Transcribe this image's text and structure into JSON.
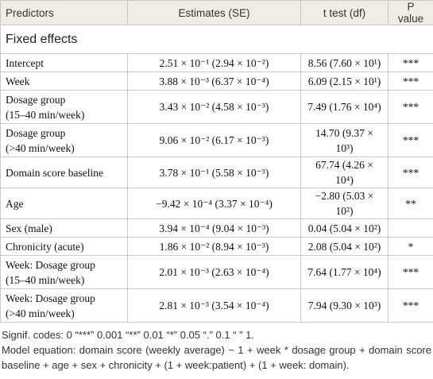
{
  "table": {
    "header": [
      "Predictors",
      "Estimates (SE)",
      "t test (df)",
      "P value"
    ],
    "section": "Fixed effects",
    "rows": [
      [
        "Intercept",
        "2.51 × 10⁻¹ (2.94 × 10⁻²)",
        "8.56 (7.60 × 10¹)",
        "***"
      ],
      [
        "Week",
        "3.88 × 10⁻³ (6.37 × 10⁻⁴)",
        "6.09 (2.15 × 10¹)",
        "***"
      ],
      [
        "Dosage group\n(15–40 min/week)",
        "3.43 × 10⁻² (4.58 × 10⁻³)",
        "7.49 (1.76 × 10⁴)",
        "***"
      ],
      [
        "Dosage group\n(>40 min/week)",
        "9.06 × 10⁻² (6.17 × 10⁻³)",
        "14.70 (9.37 × 10³)",
        "***"
      ],
      [
        "Domain score baseline",
        "3.78 × 10⁻¹ (5.58 × 10⁻³)",
        "67.74 (4.26 × 10⁴)",
        "***"
      ],
      [
        "Age",
        "−9.42 × 10⁻⁴ (3.37 × 10⁻⁴)",
        "−2.80 (5.03 × 10²)",
        "**"
      ],
      [
        "Sex (male)",
        "3.94 × 10⁻⁴ (9.04 × 10⁻³)",
        "0.04 (5.04 × 10²)",
        null
      ],
      [
        "Chronicity (acute)",
        "1.86 × 10⁻² (8.94 × 10⁻³)",
        "2.08 (5.04 × 10²)",
        "*"
      ],
      [
        "Week: Dosage group\n(15–40 min/week)",
        "2.01 × 10⁻³ (2.63 × 10⁻⁴)",
        "7.64 (1.77 × 10⁴)",
        "***"
      ],
      [
        "Week: Dosage group\n(>40 min/week)",
        "2.81 × 10⁻³ (3.54 × 10⁻⁴)",
        "7.94 (9.30 × 10³)",
        "***"
      ]
    ]
  },
  "footnotes": [
    "Signif. codes: 0 “***” 0.001 “**” 0.01 “*” 0.05 “.” 0.1 “ ” 1.",
    "Model equation: domain score (weekly average) ~ 1 + week * dosage group + domain score baseline + age + sex + chronicity + (1 + week:patient) + (1 + week: domain)."
  ]
}
